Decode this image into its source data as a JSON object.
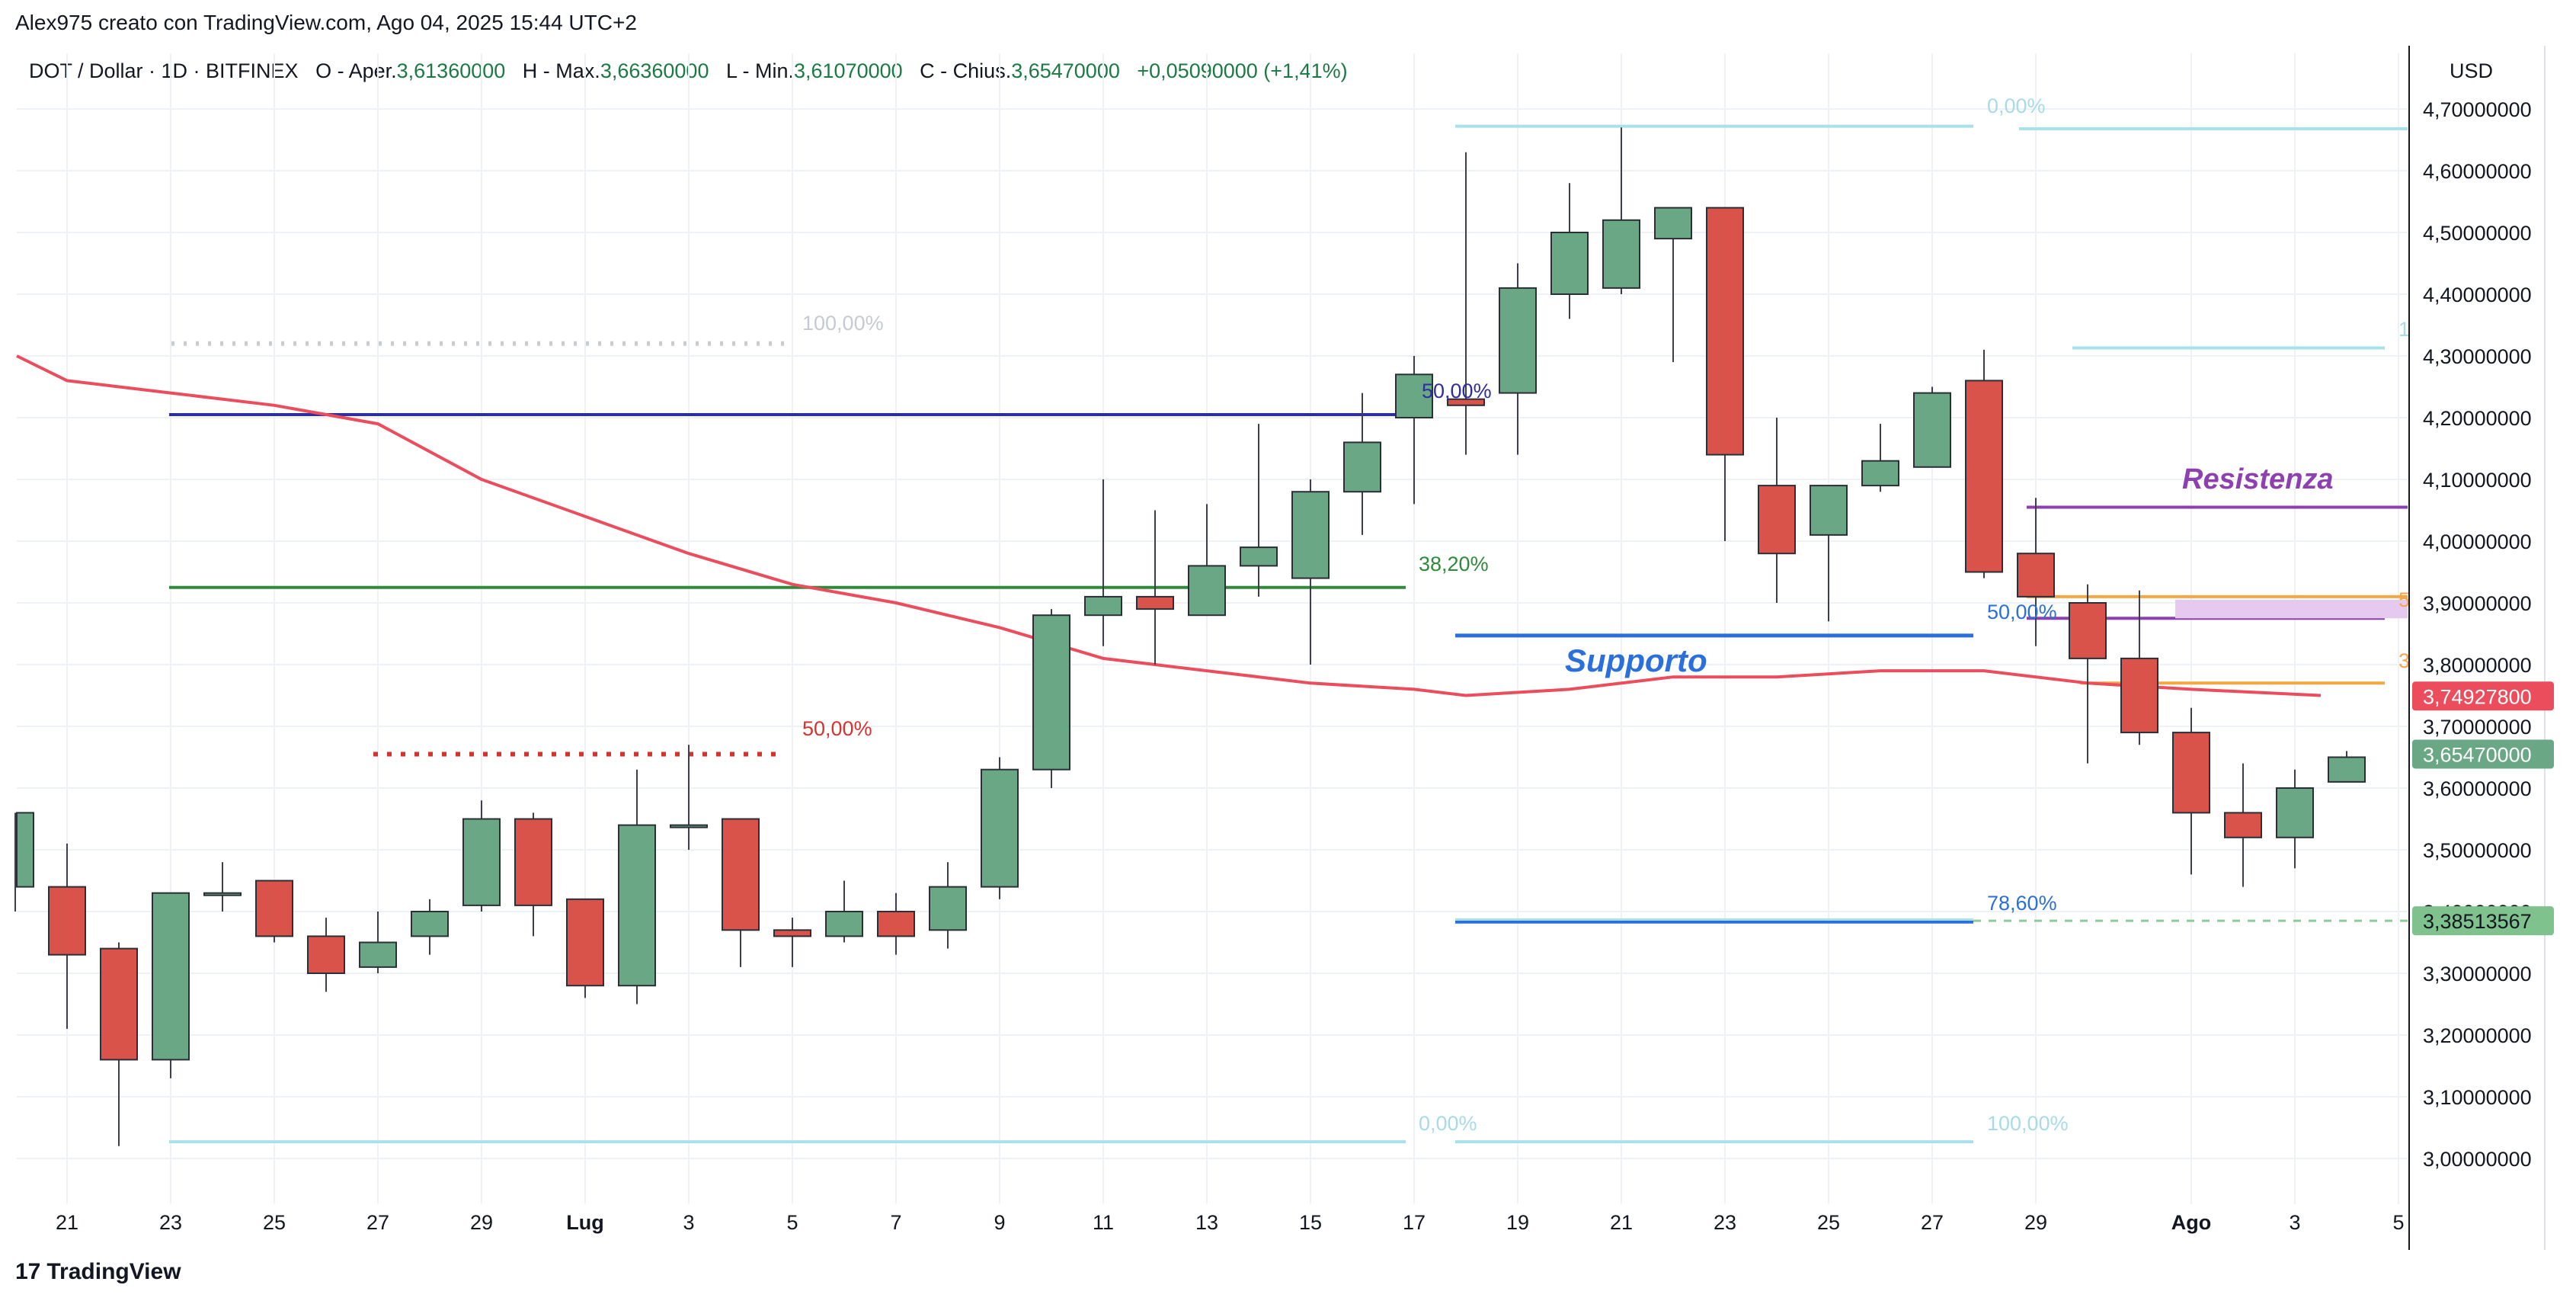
{
  "header": {
    "author_line": "Alex975 creato con TradingView.com, Ago 04, 2025 15:44 UTC+2"
  },
  "legend": {
    "symbol": "DOT / Dollar · 1D · BITFINEX",
    "o_label": "O - Aper.",
    "o_value": "3,61360000",
    "h_label": "H - Max.",
    "h_value": "3,66360000",
    "l_label": "L - Min.",
    "l_value": "3,61070000",
    "c_label": "C - Chius.",
    "c_value": "3,65470000",
    "change": "+0,05090000 (+1,41%)"
  },
  "footer": {
    "logo_mark": "17",
    "logo_text": "TradingView"
  },
  "colors": {
    "up": "#6aa784",
    "down": "#d9534a",
    "ma": "#eb4d5c",
    "navy": "#2e2f9e",
    "green_line": "#2f8a3a",
    "blue_line": "#2a6fdb",
    "cyan": "#a7e1ea",
    "purple": "#8e3fb0",
    "orange": "#f5a742",
    "dotted_red": "#d6332f",
    "dotted_grey": "#c9ccd3"
  },
  "chart_data": {
    "type": "candlestick",
    "currency": "USD",
    "y_range": [
      2.96,
      4.73
    ],
    "y_ticks": [
      "3,00000000",
      "3,10000000",
      "3,20000000",
      "3,30000000",
      "3,40000000",
      "3,50000000",
      "3,60000000",
      "3,70000000",
      "3,80000000",
      "3,90000000",
      "4,00000000",
      "4,10000000",
      "4,20000000",
      "4,30000000",
      "4,40000000",
      "4,50000000",
      "4,60000000",
      "4,70000000"
    ],
    "y_tick_values": [
      3.0,
      3.1,
      3.2,
      3.3,
      3.4,
      3.5,
      3.6,
      3.7,
      3.8,
      3.9,
      4.0,
      4.1,
      4.2,
      4.3,
      4.4,
      4.5,
      4.6,
      4.7
    ],
    "x_ticks": [
      {
        "label": "21",
        "day": 21
      },
      {
        "label": "23",
        "day": 23
      },
      {
        "label": "25",
        "day": 25
      },
      {
        "label": "27",
        "day": 27
      },
      {
        "label": "29",
        "day": 29
      },
      {
        "label": "Lug",
        "day": 31,
        "bold": true
      },
      {
        "label": "3",
        "day": 33
      },
      {
        "label": "5",
        "day": 35
      },
      {
        "label": "7",
        "day": 37
      },
      {
        "label": "9",
        "day": 39
      },
      {
        "label": "11",
        "day": 41
      },
      {
        "label": "13",
        "day": 43
      },
      {
        "label": "15",
        "day": 45
      },
      {
        "label": "17",
        "day": 47
      },
      {
        "label": "19",
        "day": 49
      },
      {
        "label": "21",
        "day": 51
      },
      {
        "label": "23",
        "day": 53
      },
      {
        "label": "25",
        "day": 55
      },
      {
        "label": "27",
        "day": 57
      },
      {
        "label": "29",
        "day": 59
      },
      {
        "label": "Ago",
        "day": 62,
        "bold": true
      },
      {
        "label": "3",
        "day": 64
      },
      {
        "label": "5",
        "day": 66
      }
    ],
    "candles": [
      {
        "d": 20,
        "o": 3.44,
        "h": 3.56,
        "l": 3.4,
        "c": 3.56
      },
      {
        "d": 21,
        "o": 3.44,
        "h": 3.51,
        "l": 3.21,
        "c": 3.33
      },
      {
        "d": 22,
        "o": 3.34,
        "h": 3.35,
        "l": 3.02,
        "c": 3.16
      },
      {
        "d": 23,
        "o": 3.16,
        "h": 3.43,
        "l": 3.13,
        "c": 3.43
      },
      {
        "d": 24,
        "o": 3.43,
        "h": 3.48,
        "l": 3.4,
        "c": 3.43
      },
      {
        "d": 25,
        "o": 3.45,
        "h": 3.45,
        "l": 3.35,
        "c": 3.36
      },
      {
        "d": 26,
        "o": 3.36,
        "h": 3.39,
        "l": 3.27,
        "c": 3.3
      },
      {
        "d": 27,
        "o": 3.31,
        "h": 3.4,
        "l": 3.3,
        "c": 3.35
      },
      {
        "d": 28,
        "o": 3.36,
        "h": 3.42,
        "l": 3.33,
        "c": 3.4
      },
      {
        "d": 29,
        "o": 3.41,
        "h": 3.58,
        "l": 3.4,
        "c": 3.55
      },
      {
        "d": 30,
        "o": 3.55,
        "h": 3.56,
        "l": 3.36,
        "c": 3.41
      },
      {
        "d": 31,
        "o": 3.42,
        "h": 3.42,
        "l": 3.26,
        "c": 3.28
      },
      {
        "d": 32,
        "o": 3.28,
        "h": 3.63,
        "l": 3.25,
        "c": 3.54
      },
      {
        "d": 33,
        "o": 3.54,
        "h": 3.67,
        "l": 3.5,
        "c": 3.54
      },
      {
        "d": 34,
        "o": 3.55,
        "h": 3.55,
        "l": 3.31,
        "c": 3.37
      },
      {
        "d": 35,
        "o": 3.37,
        "h": 3.39,
        "l": 3.31,
        "c": 3.36
      },
      {
        "d": 36,
        "o": 3.36,
        "h": 3.45,
        "l": 3.35,
        "c": 3.4
      },
      {
        "d": 37,
        "o": 3.4,
        "h": 3.43,
        "l": 3.33,
        "c": 3.36
      },
      {
        "d": 38,
        "o": 3.37,
        "h": 3.48,
        "l": 3.34,
        "c": 3.44
      },
      {
        "d": 39,
        "o": 3.44,
        "h": 3.65,
        "l": 3.42,
        "c": 3.63
      },
      {
        "d": 40,
        "o": 3.63,
        "h": 3.89,
        "l": 3.6,
        "c": 3.88
      },
      {
        "d": 41,
        "o": 3.88,
        "h": 4.1,
        "l": 3.83,
        "c": 3.91
      },
      {
        "d": 42,
        "o": 3.91,
        "h": 4.05,
        "l": 3.8,
        "c": 3.89
      },
      {
        "d": 43,
        "o": 3.88,
        "h": 4.06,
        "l": 3.88,
        "c": 3.96
      },
      {
        "d": 44,
        "o": 3.96,
        "h": 4.19,
        "l": 3.91,
        "c": 3.99
      },
      {
        "d": 45,
        "o": 3.94,
        "h": 4.1,
        "l": 3.8,
        "c": 4.08
      },
      {
        "d": 46,
        "o": 4.08,
        "h": 4.24,
        "l": 4.01,
        "c": 4.16
      },
      {
        "d": 47,
        "o": 4.2,
        "h": 4.3,
        "l": 4.06,
        "c": 4.27
      },
      {
        "d": 48,
        "o": 4.23,
        "h": 4.63,
        "l": 4.14,
        "c": 4.22
      },
      {
        "d": 49,
        "o": 4.24,
        "h": 4.45,
        "l": 4.14,
        "c": 4.41
      },
      {
        "d": 50,
        "o": 4.4,
        "h": 4.58,
        "l": 4.36,
        "c": 4.5
      },
      {
        "d": 51,
        "o": 4.41,
        "h": 4.67,
        "l": 4.4,
        "c": 4.52
      },
      {
        "d": 52,
        "o": 4.49,
        "h": 4.54,
        "l": 4.29,
        "c": 4.54
      },
      {
        "d": 53,
        "o": 4.54,
        "h": 4.54,
        "l": 4.0,
        "c": 4.14
      },
      {
        "d": 54,
        "o": 4.09,
        "h": 4.2,
        "l": 3.9,
        "c": 3.98
      },
      {
        "d": 55,
        "o": 4.01,
        "h": 4.09,
        "l": 3.87,
        "c": 4.09
      },
      {
        "d": 56,
        "o": 4.09,
        "h": 4.19,
        "l": 4.08,
        "c": 4.13
      },
      {
        "d": 57,
        "o": 4.12,
        "h": 4.25,
        "l": 4.12,
        "c": 4.24
      },
      {
        "d": 58,
        "o": 4.26,
        "h": 4.31,
        "l": 3.94,
        "c": 3.95
      },
      {
        "d": 59,
        "o": 3.98,
        "h": 4.07,
        "l": 3.83,
        "c": 3.91
      },
      {
        "d": 60,
        "o": 3.9,
        "h": 3.93,
        "l": 3.64,
        "c": 3.81
      },
      {
        "d": 61,
        "o": 3.81,
        "h": 3.92,
        "l": 3.67,
        "c": 3.69
      },
      {
        "d": 62,
        "o": 3.69,
        "h": 3.73,
        "l": 3.46,
        "c": 3.56
      },
      {
        "d": 63,
        "o": 3.56,
        "h": 3.64,
        "l": 3.44,
        "c": 3.52
      },
      {
        "d": 64,
        "o": 3.52,
        "h": 3.63,
        "l": 3.47,
        "c": 3.6
      },
      {
        "d": 65,
        "o": 3.61,
        "h": 3.66,
        "l": 3.61,
        "c": 3.65
      }
    ],
    "moving_average": [
      {
        "d": 19.0,
        "v": 4.3
      },
      {
        "d": 21.0,
        "v": 4.26
      },
      {
        "d": 23.0,
        "v": 4.24
      },
      {
        "d": 25.0,
        "v": 4.22
      },
      {
        "d": 27.0,
        "v": 4.19
      },
      {
        "d": 29.0,
        "v": 4.1
      },
      {
        "d": 31.0,
        "v": 4.04
      },
      {
        "d": 33.0,
        "v": 3.98
      },
      {
        "d": 35.0,
        "v": 3.93
      },
      {
        "d": 37.0,
        "v": 3.9
      },
      {
        "d": 39.0,
        "v": 3.86
      },
      {
        "d": 41.0,
        "v": 3.81
      },
      {
        "d": 43.0,
        "v": 3.79
      },
      {
        "d": 45.0,
        "v": 3.77
      },
      {
        "d": 47.0,
        "v": 3.76
      },
      {
        "d": 48.0,
        "v": 3.75
      },
      {
        "d": 50.0,
        "v": 3.76
      },
      {
        "d": 52.0,
        "v": 3.78
      },
      {
        "d": 54.0,
        "v": 3.78
      },
      {
        "d": 56.0,
        "v": 3.79
      },
      {
        "d": 58.0,
        "v": 3.79
      },
      {
        "d": 60.0,
        "v": 3.77
      },
      {
        "d": 62.0,
        "v": 3.76
      },
      {
        "d": 64.5,
        "v": 3.75
      }
    ],
    "annotations": {
      "resistance_label": "Resistenza",
      "support_label": "Supporto",
      "fib_100_left": "100,00%",
      "fib_50_left": "50,00%",
      "fib_38_left": "38,20%",
      "fib_50_mid": "50,00%",
      "fib_0_mid": "0,00%",
      "fib_0_top": "0,00%",
      "fib_50_right": "50,00%",
      "fib_78_right": "78,60%",
      "fib_100_right": "100,00%",
      "edge_5": "5",
      "edge_3": "3",
      "edge_1": "1"
    },
    "price_labels": {
      "ma_value": "3,74927800",
      "last_price": "3,65470000",
      "level_price": "3,38513567"
    }
  }
}
